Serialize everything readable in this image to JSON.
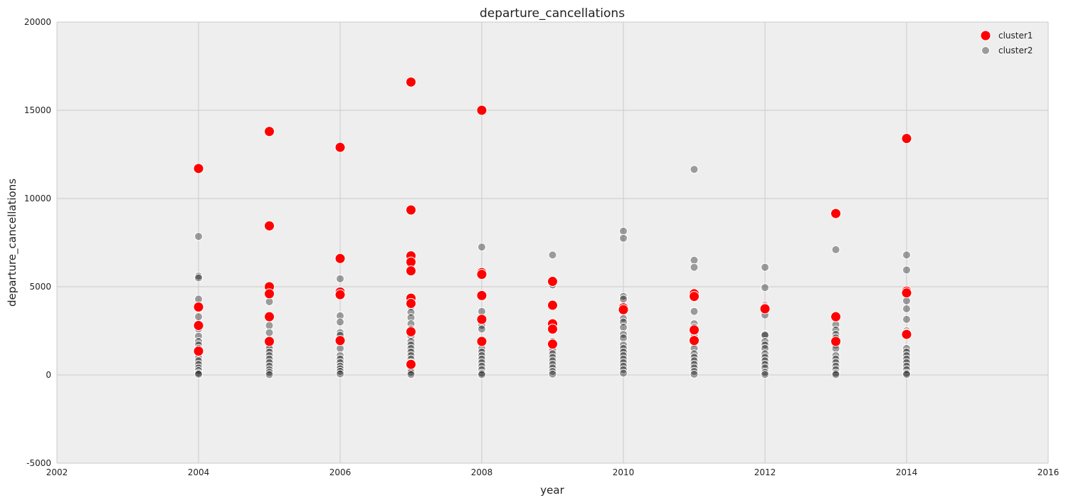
{
  "chart_data": {
    "type": "scatter",
    "title": "departure_cancellations",
    "xlabel": "year",
    "ylabel": "departure_cancellations",
    "xlim": [
      2002,
      2016
    ],
    "ylim": [
      -5000,
      20000
    ],
    "xticks": [
      2002,
      2004,
      2006,
      2008,
      2010,
      2012,
      2014,
      2016
    ],
    "yticks": [
      -5000,
      0,
      5000,
      10000,
      15000,
      20000
    ],
    "grid": true,
    "background": "#eeeeee",
    "grid_color": "#cbcbcb",
    "legend_position": "top-right",
    "series": [
      {
        "name": "cluster1",
        "color": "#ff0000",
        "marker": "circle-large",
        "points": [
          [
            2004,
            11700
          ],
          [
            2004,
            3850
          ],
          [
            2004,
            2800
          ],
          [
            2004,
            1350
          ],
          [
            2005,
            13800
          ],
          [
            2005,
            8450
          ],
          [
            2005,
            5000
          ],
          [
            2005,
            4600
          ],
          [
            2005,
            3300
          ],
          [
            2005,
            1900
          ],
          [
            2006,
            12900
          ],
          [
            2006,
            6600
          ],
          [
            2006,
            4700
          ],
          [
            2006,
            4550
          ],
          [
            2006,
            1950
          ],
          [
            2007,
            16600
          ],
          [
            2007,
            9350
          ],
          [
            2007,
            6750
          ],
          [
            2007,
            6400
          ],
          [
            2007,
            5900
          ],
          [
            2007,
            4350
          ],
          [
            2007,
            4050
          ],
          [
            2007,
            2450
          ],
          [
            2007,
            600
          ],
          [
            2008,
            15000
          ],
          [
            2008,
            5800
          ],
          [
            2008,
            5700
          ],
          [
            2008,
            4500
          ],
          [
            2008,
            3150
          ],
          [
            2008,
            1900
          ],
          [
            2009,
            5300
          ],
          [
            2009,
            3950
          ],
          [
            2009,
            2900
          ],
          [
            2009,
            2600
          ],
          [
            2009,
            1750
          ],
          [
            2010,
            3800
          ],
          [
            2010,
            3700
          ],
          [
            2011,
            4600
          ],
          [
            2011,
            4450
          ],
          [
            2011,
            2550
          ],
          [
            2011,
            1950
          ],
          [
            2012,
            3800
          ],
          [
            2012,
            3750
          ],
          [
            2013,
            9150
          ],
          [
            2013,
            3300
          ],
          [
            2013,
            1900
          ],
          [
            2014,
            13400
          ],
          [
            2014,
            4750
          ],
          [
            2014,
            4650
          ],
          [
            2014,
            2300
          ]
        ]
      },
      {
        "name": "cluster2",
        "color": "#000000",
        "marker": "circle-small-translucent",
        "points": [
          [
            2004,
            7850
          ],
          [
            2004,
            5600
          ],
          [
            2004,
            5500
          ],
          [
            2004,
            4300
          ],
          [
            2004,
            3300
          ],
          [
            2004,
            2600
          ],
          [
            2004,
            2200
          ],
          [
            2004,
            1900
          ],
          [
            2004,
            1700
          ],
          [
            2004,
            1500
          ],
          [
            2004,
            1200
          ],
          [
            2004,
            1000
          ],
          [
            2004,
            800
          ],
          [
            2004,
            600
          ],
          [
            2004,
            400
          ],
          [
            2004,
            250
          ],
          [
            2004,
            100
          ],
          [
            2004,
            40
          ],
          [
            2005,
            4600
          ],
          [
            2005,
            4150
          ],
          [
            2005,
            3350
          ],
          [
            2005,
            2800
          ],
          [
            2005,
            2400
          ],
          [
            2005,
            1900
          ],
          [
            2005,
            1700
          ],
          [
            2005,
            1500
          ],
          [
            2005,
            1300
          ],
          [
            2005,
            1100
          ],
          [
            2005,
            900
          ],
          [
            2005,
            700
          ],
          [
            2005,
            500
          ],
          [
            2005,
            300
          ],
          [
            2005,
            150
          ],
          [
            2005,
            20
          ],
          [
            2006,
            5450
          ],
          [
            2006,
            4500
          ],
          [
            2006,
            3350
          ],
          [
            2006,
            3000
          ],
          [
            2006,
            2400
          ],
          [
            2006,
            2250
          ],
          [
            2006,
            1950
          ],
          [
            2006,
            1500
          ],
          [
            2006,
            1100
          ],
          [
            2006,
            900
          ],
          [
            2006,
            700
          ],
          [
            2006,
            500
          ],
          [
            2006,
            350
          ],
          [
            2006,
            200
          ],
          [
            2006,
            60
          ],
          [
            2007,
            4200
          ],
          [
            2007,
            3850
          ],
          [
            2007,
            3550
          ],
          [
            2007,
            3250
          ],
          [
            2007,
            2900
          ],
          [
            2007,
            2600
          ],
          [
            2007,
            2200
          ],
          [
            2007,
            1900
          ],
          [
            2007,
            1700
          ],
          [
            2007,
            1500
          ],
          [
            2007,
            1300
          ],
          [
            2007,
            1100
          ],
          [
            2007,
            900
          ],
          [
            2007,
            700
          ],
          [
            2007,
            500
          ],
          [
            2007,
            300
          ],
          [
            2007,
            150
          ],
          [
            2007,
            30
          ],
          [
            2008,
            7250
          ],
          [
            2008,
            3600
          ],
          [
            2008,
            3100
          ],
          [
            2008,
            2800
          ],
          [
            2008,
            2600
          ],
          [
            2008,
            1500
          ],
          [
            2008,
            1300
          ],
          [
            2008,
            1100
          ],
          [
            2008,
            900
          ],
          [
            2008,
            700
          ],
          [
            2008,
            500
          ],
          [
            2008,
            300
          ],
          [
            2008,
            100
          ],
          [
            2008,
            20
          ],
          [
            2009,
            6800
          ],
          [
            2009,
            5100
          ],
          [
            2009,
            2800
          ],
          [
            2009,
            1900
          ],
          [
            2009,
            1600
          ],
          [
            2009,
            1400
          ],
          [
            2009,
            1200
          ],
          [
            2009,
            1000
          ],
          [
            2009,
            800
          ],
          [
            2009,
            600
          ],
          [
            2009,
            400
          ],
          [
            2009,
            200
          ],
          [
            2009,
            50
          ],
          [
            2010,
            8150
          ],
          [
            2010,
            7750
          ],
          [
            2010,
            4450
          ],
          [
            2010,
            4300
          ],
          [
            2010,
            3200
          ],
          [
            2010,
            3000
          ],
          [
            2010,
            2700
          ],
          [
            2010,
            2300
          ],
          [
            2010,
            2100
          ],
          [
            2010,
            1700
          ],
          [
            2010,
            1500
          ],
          [
            2010,
            1300
          ],
          [
            2010,
            1100
          ],
          [
            2010,
            900
          ],
          [
            2010,
            700
          ],
          [
            2010,
            500
          ],
          [
            2010,
            300
          ],
          [
            2010,
            100
          ],
          [
            2011,
            11650
          ],
          [
            2011,
            6500
          ],
          [
            2011,
            6100
          ],
          [
            2011,
            3600
          ],
          [
            2011,
            2900
          ],
          [
            2011,
            2700
          ],
          [
            2011,
            2300
          ],
          [
            2011,
            1800
          ],
          [
            2011,
            1500
          ],
          [
            2011,
            1200
          ],
          [
            2011,
            1000
          ],
          [
            2011,
            800
          ],
          [
            2011,
            600
          ],
          [
            2011,
            400
          ],
          [
            2011,
            200
          ],
          [
            2011,
            40
          ],
          [
            2012,
            6100
          ],
          [
            2012,
            4950
          ],
          [
            2012,
            3950
          ],
          [
            2012,
            3400
          ],
          [
            2012,
            2300
          ],
          [
            2012,
            2250
          ],
          [
            2012,
            1900
          ],
          [
            2012,
            1700
          ],
          [
            2012,
            1500
          ],
          [
            2012,
            1200
          ],
          [
            2012,
            1000
          ],
          [
            2012,
            800
          ],
          [
            2012,
            600
          ],
          [
            2012,
            400
          ],
          [
            2012,
            150
          ],
          [
            2012,
            30
          ],
          [
            2013,
            7100
          ],
          [
            2013,
            3350
          ],
          [
            2013,
            2850
          ],
          [
            2013,
            2550
          ],
          [
            2013,
            2300
          ],
          [
            2013,
            2100
          ],
          [
            2013,
            1700
          ],
          [
            2013,
            1500
          ],
          [
            2013,
            1100
          ],
          [
            2013,
            900
          ],
          [
            2013,
            700
          ],
          [
            2013,
            500
          ],
          [
            2013,
            300
          ],
          [
            2013,
            100
          ],
          [
            2013,
            20
          ],
          [
            2014,
            6800
          ],
          [
            2014,
            5950
          ],
          [
            2014,
            4200
          ],
          [
            2014,
            3750
          ],
          [
            2014,
            3150
          ],
          [
            2014,
            2500
          ],
          [
            2014,
            2400
          ],
          [
            2014,
            1500
          ],
          [
            2014,
            1300
          ],
          [
            2014,
            1100
          ],
          [
            2014,
            900
          ],
          [
            2014,
            700
          ],
          [
            2014,
            500
          ],
          [
            2014,
            300
          ],
          [
            2014,
            100
          ],
          [
            2014,
            30
          ]
        ]
      }
    ]
  }
}
